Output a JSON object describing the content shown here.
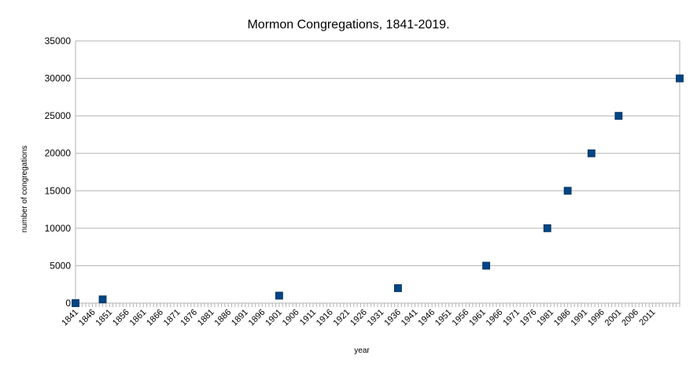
{
  "chart_data": {
    "type": "scatter",
    "title": "Mormon Congregations, 1841-2019.",
    "xlabel": "year",
    "ylabel": "number of congregations",
    "x_tick_labels": [
      "1841",
      "1846",
      "1851",
      "1856",
      "1861",
      "1866",
      "1871",
      "1876",
      "1881",
      "1886",
      "1891",
      "1896",
      "1901",
      "1906",
      "1911",
      "1916",
      "1921",
      "1926",
      "1931",
      "1936",
      "1941",
      "1946",
      "1951",
      "1956",
      "1961",
      "1966",
      "1971",
      "1976",
      "1981",
      "1986",
      "1991",
      "1996",
      "2001",
      "2006",
      "2011"
    ],
    "y_tick_labels": [
      "0",
      "5000",
      "10000",
      "15000",
      "20000",
      "25000",
      "30000",
      "35000"
    ],
    "xlim": [
      1841,
      2019
    ],
    "ylim": [
      0,
      35000
    ],
    "grid": "horizontal",
    "legend": "none",
    "marker": "square",
    "marker_color": "#004586",
    "x": [
      1841,
      1849,
      1901,
      1936,
      1962,
      1980,
      1986,
      1993,
      2001,
      2019
    ],
    "y": [
      0,
      500,
      1000,
      2000,
      5000,
      10000,
      15000,
      20000,
      25000,
      30000
    ]
  }
}
